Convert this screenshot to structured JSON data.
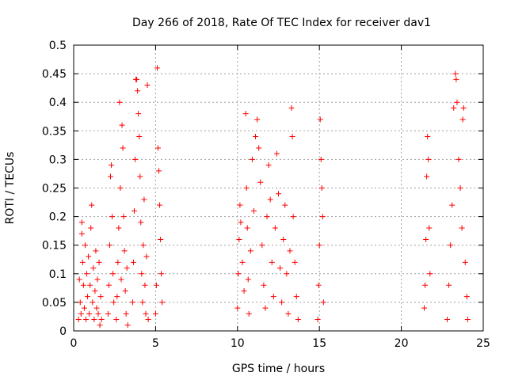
{
  "chart_data": {
    "type": "scatter",
    "title": "Day 266 of 2018, Rate Of TEC Index for receiver dav1",
    "xlabel": "GPS time / hours",
    "ylabel": "ROTI / TECUs",
    "xlim": [
      0,
      25
    ],
    "ylim": [
      0,
      0.5
    ],
    "x_ticks": [
      "0",
      "5",
      "10",
      "15",
      "20",
      "25"
    ],
    "y_ticks": [
      "0",
      "0.05",
      "0.1",
      "0.15",
      "0.2",
      "0.25",
      "0.3",
      "0.35",
      "0.4",
      "0.45",
      "0.5"
    ],
    "grid": true,
    "legend": "none",
    "marker": "+",
    "marker_color": "#ff0000",
    "series": [
      {
        "points": [
          [
            0.3,
            0.02
          ],
          [
            0.35,
            0.09
          ],
          [
            0.4,
            0.05
          ],
          [
            0.45,
            0.03
          ],
          [
            0.5,
            0.17
          ],
          [
            0.5,
            0.19
          ],
          [
            0.55,
            0.12
          ],
          [
            0.6,
            0.08
          ],
          [
            0.65,
            0.04
          ],
          [
            0.7,
            0.15
          ],
          [
            0.75,
            0.02
          ],
          [
            0.8,
            0.1
          ],
          [
            0.85,
            0.06
          ],
          [
            0.9,
            0.13
          ],
          [
            0.95,
            0.03
          ],
          [
            1.0,
            0.08
          ],
          [
            1.05,
            0.18
          ],
          [
            1.1,
            0.22
          ],
          [
            1.15,
            0.05
          ],
          [
            1.2,
            0.11
          ],
          [
            1.25,
            0.02
          ],
          [
            1.3,
            0.07
          ],
          [
            1.35,
            0.14
          ],
          [
            1.4,
            0.04
          ],
          [
            1.45,
            0.09
          ],
          [
            1.5,
            0.03
          ],
          [
            1.55,
            0.12
          ],
          [
            1.6,
            0.01
          ],
          [
            1.65,
            0.06
          ],
          [
            1.7,
            0.02
          ],
          [
            2.1,
            0.03
          ],
          [
            2.15,
            0.08
          ],
          [
            2.2,
            0.15
          ],
          [
            2.25,
            0.27
          ],
          [
            2.3,
            0.29
          ],
          [
            2.35,
            0.2
          ],
          [
            2.4,
            0.1
          ],
          [
            2.45,
            0.05
          ],
          [
            2.6,
            0.02
          ],
          [
            2.65,
            0.06
          ],
          [
            2.7,
            0.12
          ],
          [
            2.75,
            0.18
          ],
          [
            2.8,
            0.4
          ],
          [
            2.85,
            0.25
          ],
          [
            2.9,
            0.09
          ],
          [
            2.95,
            0.36
          ],
          [
            3.0,
            0.32
          ],
          [
            3.05,
            0.2
          ],
          [
            3.1,
            0.14
          ],
          [
            3.15,
            0.07
          ],
          [
            3.2,
            0.03
          ],
          [
            3.25,
            0.11
          ],
          [
            3.3,
            0.01
          ],
          [
            3.6,
            0.05
          ],
          [
            3.65,
            0.12
          ],
          [
            3.7,
            0.21
          ],
          [
            3.75,
            0.3
          ],
          [
            3.8,
            0.44
          ],
          [
            3.85,
            0.44
          ],
          [
            3.9,
            0.42
          ],
          [
            3.95,
            0.38
          ],
          [
            4.0,
            0.34
          ],
          [
            4.05,
            0.27
          ],
          [
            4.1,
            0.19
          ],
          [
            4.15,
            0.1
          ],
          [
            4.2,
            0.05
          ],
          [
            4.25,
            0.15
          ],
          [
            4.3,
            0.23
          ],
          [
            4.35,
            0.08
          ],
          [
            4.4,
            0.03
          ],
          [
            4.45,
            0.13
          ],
          [
            4.5,
            0.43
          ],
          [
            4.55,
            0.02
          ],
          [
            5.0,
            0.03
          ],
          [
            5.05,
            0.08
          ],
          [
            5.1,
            0.46
          ],
          [
            5.15,
            0.32
          ],
          [
            5.2,
            0.28
          ],
          [
            5.25,
            0.22
          ],
          [
            5.3,
            0.16
          ],
          [
            5.35,
            0.1
          ],
          [
            5.4,
            0.05
          ],
          [
            10.0,
            0.04
          ],
          [
            10.05,
            0.1
          ],
          [
            10.1,
            0.16
          ],
          [
            10.15,
            0.22
          ],
          [
            10.2,
            0.19
          ],
          [
            10.3,
            0.12
          ],
          [
            10.4,
            0.07
          ],
          [
            10.5,
            0.38
          ],
          [
            10.55,
            0.25
          ],
          [
            10.6,
            0.18
          ],
          [
            10.65,
            0.09
          ],
          [
            10.7,
            0.03
          ],
          [
            10.8,
            0.14
          ],
          [
            10.9,
            0.3
          ],
          [
            11.0,
            0.21
          ],
          [
            11.1,
            0.34
          ],
          [
            11.2,
            0.37
          ],
          [
            11.3,
            0.32
          ],
          [
            11.4,
            0.26
          ],
          [
            11.5,
            0.15
          ],
          [
            11.6,
            0.08
          ],
          [
            11.7,
            0.04
          ],
          [
            11.8,
            0.2
          ],
          [
            11.9,
            0.29
          ],
          [
            12.0,
            0.23
          ],
          [
            12.1,
            0.12
          ],
          [
            12.2,
            0.06
          ],
          [
            12.3,
            0.18
          ],
          [
            12.4,
            0.31
          ],
          [
            12.5,
            0.24
          ],
          [
            12.6,
            0.11
          ],
          [
            12.7,
            0.05
          ],
          [
            12.8,
            0.16
          ],
          [
            12.9,
            0.22
          ],
          [
            13.0,
            0.1
          ],
          [
            13.1,
            0.03
          ],
          [
            13.2,
            0.14
          ],
          [
            13.3,
            0.39
          ],
          [
            13.35,
            0.34
          ],
          [
            13.4,
            0.2
          ],
          [
            13.5,
            0.12
          ],
          [
            13.6,
            0.06
          ],
          [
            13.7,
            0.02
          ],
          [
            14.9,
            0.02
          ],
          [
            14.95,
            0.08
          ],
          [
            15.0,
            0.15
          ],
          [
            15.05,
            0.37
          ],
          [
            15.1,
            0.3
          ],
          [
            15.15,
            0.25
          ],
          [
            15.2,
            0.2
          ],
          [
            15.25,
            0.05
          ],
          [
            21.4,
            0.04
          ],
          [
            21.45,
            0.08
          ],
          [
            21.5,
            0.16
          ],
          [
            21.55,
            0.27
          ],
          [
            21.6,
            0.34
          ],
          [
            21.65,
            0.3
          ],
          [
            21.7,
            0.18
          ],
          [
            21.75,
            0.1
          ],
          [
            22.8,
            0.02
          ],
          [
            22.9,
            0.08
          ],
          [
            23.0,
            0.15
          ],
          [
            23.1,
            0.22
          ],
          [
            23.2,
            0.39
          ],
          [
            23.3,
            0.45
          ],
          [
            23.35,
            0.44
          ],
          [
            23.4,
            0.4
          ],
          [
            23.5,
            0.3
          ],
          [
            23.6,
            0.25
          ],
          [
            23.7,
            0.18
          ],
          [
            23.75,
            0.37
          ],
          [
            23.8,
            0.39
          ],
          [
            23.9,
            0.12
          ],
          [
            24.0,
            0.06
          ],
          [
            24.05,
            0.02
          ]
        ]
      }
    ]
  }
}
